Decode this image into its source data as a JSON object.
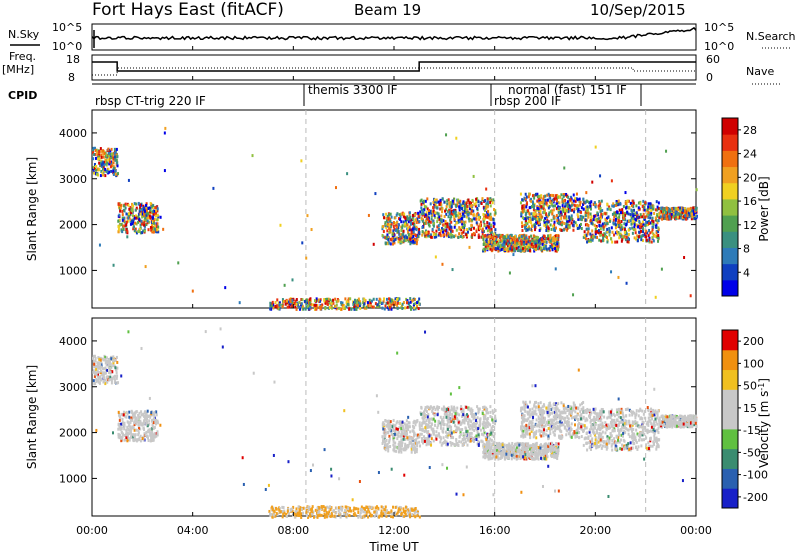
{
  "header": {
    "station": "Fort Hays East (fitACF)",
    "beam": "Beam 19",
    "date": "10/Sep/2015"
  },
  "panel_labels": {
    "nsky": "N.Sky",
    "freq_top": "Freq.",
    "freq_unit": "[MHz]",
    "cpid": "CPID",
    "nsearch": "N.Search",
    "nave": "Nave"
  },
  "noise_axis": {
    "left_ticks": [
      "10^5",
      "10^0"
    ],
    "right_ticks": [
      "10^5",
      "10^0"
    ]
  },
  "freq_axis": {
    "left_ticks": [
      "18",
      "8"
    ],
    "right_ticks": [
      "60",
      "0"
    ]
  },
  "cpid_segments": [
    {
      "label": "rbsp CT-trig 220 IF",
      "start_h": 0,
      "end_h": 8.5
    },
    {
      "label": "themis 3300 IF",
      "start_h": 8.5,
      "end_h": 16.0
    },
    {
      "label": "rbsp 200 IF",
      "start_h": 16.0,
      "end_h": 22.0
    },
    {
      "label": "normal (fast) 151 IF",
      "start_h": 16.0,
      "end_h": 22.0
    }
  ],
  "chart_data": {
    "type": "heatmap",
    "x_label": "Time UT",
    "x_ticks": [
      "00:00",
      "04:00",
      "08:00",
      "12:00",
      "16:00",
      "20:00",
      "00:00"
    ],
    "x_tick_hours": [
      0,
      4,
      8,
      12,
      16,
      20,
      24
    ],
    "xlim_hours": [
      0,
      24
    ],
    "y_label": "Slant Range [km]",
    "y_ticks": [
      "1000",
      "2000",
      "3000",
      "4000"
    ],
    "y_tick_values": [
      1000,
      2000,
      3000,
      4000
    ],
    "ylim_km": [
      180,
      4500
    ],
    "mode_change_hours": [
      8.5,
      16.0,
      22.0
    ],
    "power_scale": {
      "label": "Power [dB]",
      "ticks": [
        "4",
        "8",
        "12",
        "16",
        "20",
        "24",
        "28"
      ],
      "tick_values": [
        4,
        8,
        12,
        16,
        20,
        24,
        28
      ],
      "range": [
        0,
        30
      ]
    },
    "velocity_scale": {
      "label": "Velocity [m s",
      "label_sup": "-1",
      "label_end": "]",
      "ticks": [
        "200",
        "100",
        "50",
        "15",
        "-15",
        "-50",
        "-100",
        "-200"
      ]
    },
    "scatter_regions": [
      {
        "t0": 0.0,
        "t1": 1.0,
        "r_low": 3100,
        "r_high": 3700,
        "kind": "ionospheric"
      },
      {
        "t0": 1.0,
        "t1": 2.6,
        "r_low": 1850,
        "r_high": 2500,
        "kind": "ionospheric"
      },
      {
        "t0": 11.5,
        "t1": 13.0,
        "r_low": 1600,
        "r_high": 2300,
        "kind": "ionospheric"
      },
      {
        "t0": 13.0,
        "t1": 16.0,
        "r_low": 1750,
        "r_high": 2600,
        "kind": "ionospheric"
      },
      {
        "t0": 15.5,
        "t1": 18.5,
        "r_low": 1450,
        "r_high": 1800,
        "kind": "ionospheric"
      },
      {
        "t0": 17.0,
        "t1": 19.5,
        "r_low": 1900,
        "r_high": 2700,
        "kind": "ionospheric"
      },
      {
        "t0": 19.5,
        "t1": 22.5,
        "r_low": 1650,
        "r_high": 2550,
        "kind": "ionospheric"
      },
      {
        "t0": 22.5,
        "t1": 24.0,
        "r_low": 2150,
        "r_high": 2400,
        "kind": "ionospheric"
      },
      {
        "t0": 7.0,
        "t1": 13.0,
        "r_low": 180,
        "r_high": 420,
        "kind": "ground"
      }
    ]
  }
}
